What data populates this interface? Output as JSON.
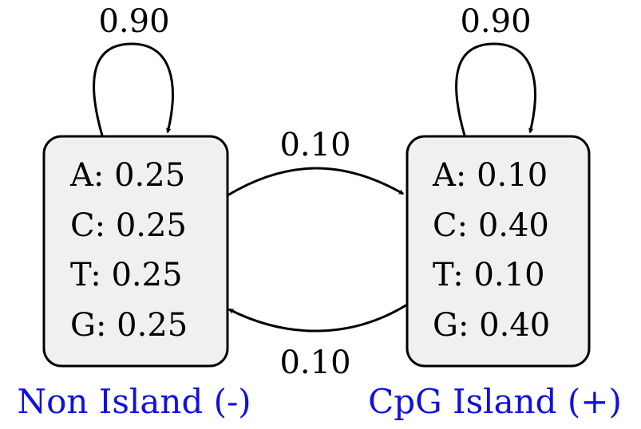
{
  "colors": {
    "state_fill": "#f0f0f0",
    "stroke": "#000000",
    "state_name": "#1010e0"
  },
  "states": [
    {
      "name": "Non Island (-)",
      "emissions": [
        {
          "symbol": "A",
          "prob": "0.25"
        },
        {
          "symbol": "C",
          "prob": "0.25"
        },
        {
          "symbol": "T",
          "prob": "0.25"
        },
        {
          "symbol": "G",
          "prob": "0.25"
        }
      ],
      "self_transition": "0.90"
    },
    {
      "name": "CpG Island (+)",
      "emissions": [
        {
          "symbol": "A",
          "prob": "0.10"
        },
        {
          "symbol": "C",
          "prob": "0.40"
        },
        {
          "symbol": "T",
          "prob": "0.10"
        },
        {
          "symbol": "G",
          "prob": "0.40"
        }
      ],
      "self_transition": "0.90"
    }
  ],
  "transitions": {
    "non_to_cpg": "0.10",
    "cpg_to_non": "0.10"
  }
}
